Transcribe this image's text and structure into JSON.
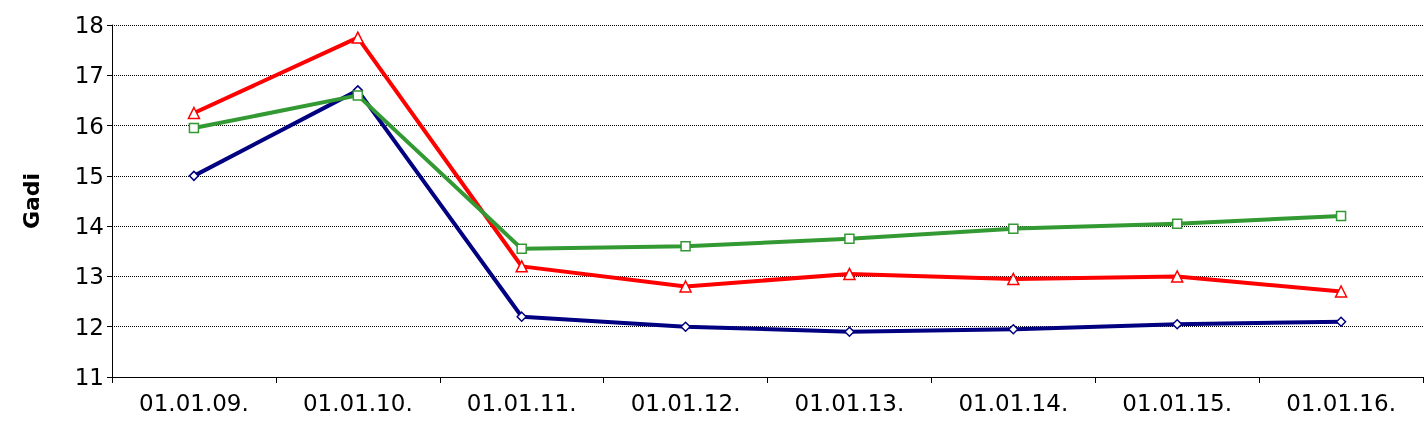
{
  "chart_data": {
    "type": "line",
    "ylabel": "Gadi",
    "categories": [
      "01.01.09.",
      "01.01.10.",
      "01.01.11.",
      "01.01.12.",
      "01.01.13.",
      "01.01.14.",
      "01.01.15.",
      "01.01.16."
    ],
    "series": [
      {
        "color": "#000080",
        "marker": "diamond",
        "values": [
          15.0,
          16.7,
          12.2,
          12.0,
          11.9,
          11.95,
          12.05,
          12.1
        ]
      },
      {
        "color": "#ff0000",
        "marker": "triangle",
        "values": [
          16.25,
          17.75,
          13.2,
          12.8,
          13.05,
          12.95,
          13.0,
          12.7
        ]
      },
      {
        "color": "#339933",
        "marker": "square",
        "values": [
          15.95,
          16.6,
          13.55,
          13.6,
          13.75,
          13.95,
          14.05,
          14.2
        ]
      }
    ],
    "ylim": [
      11,
      18
    ],
    "yticks": [
      11,
      12,
      13,
      14,
      15,
      16,
      17,
      18
    ],
    "grid": "y",
    "line_style": "solid"
  }
}
